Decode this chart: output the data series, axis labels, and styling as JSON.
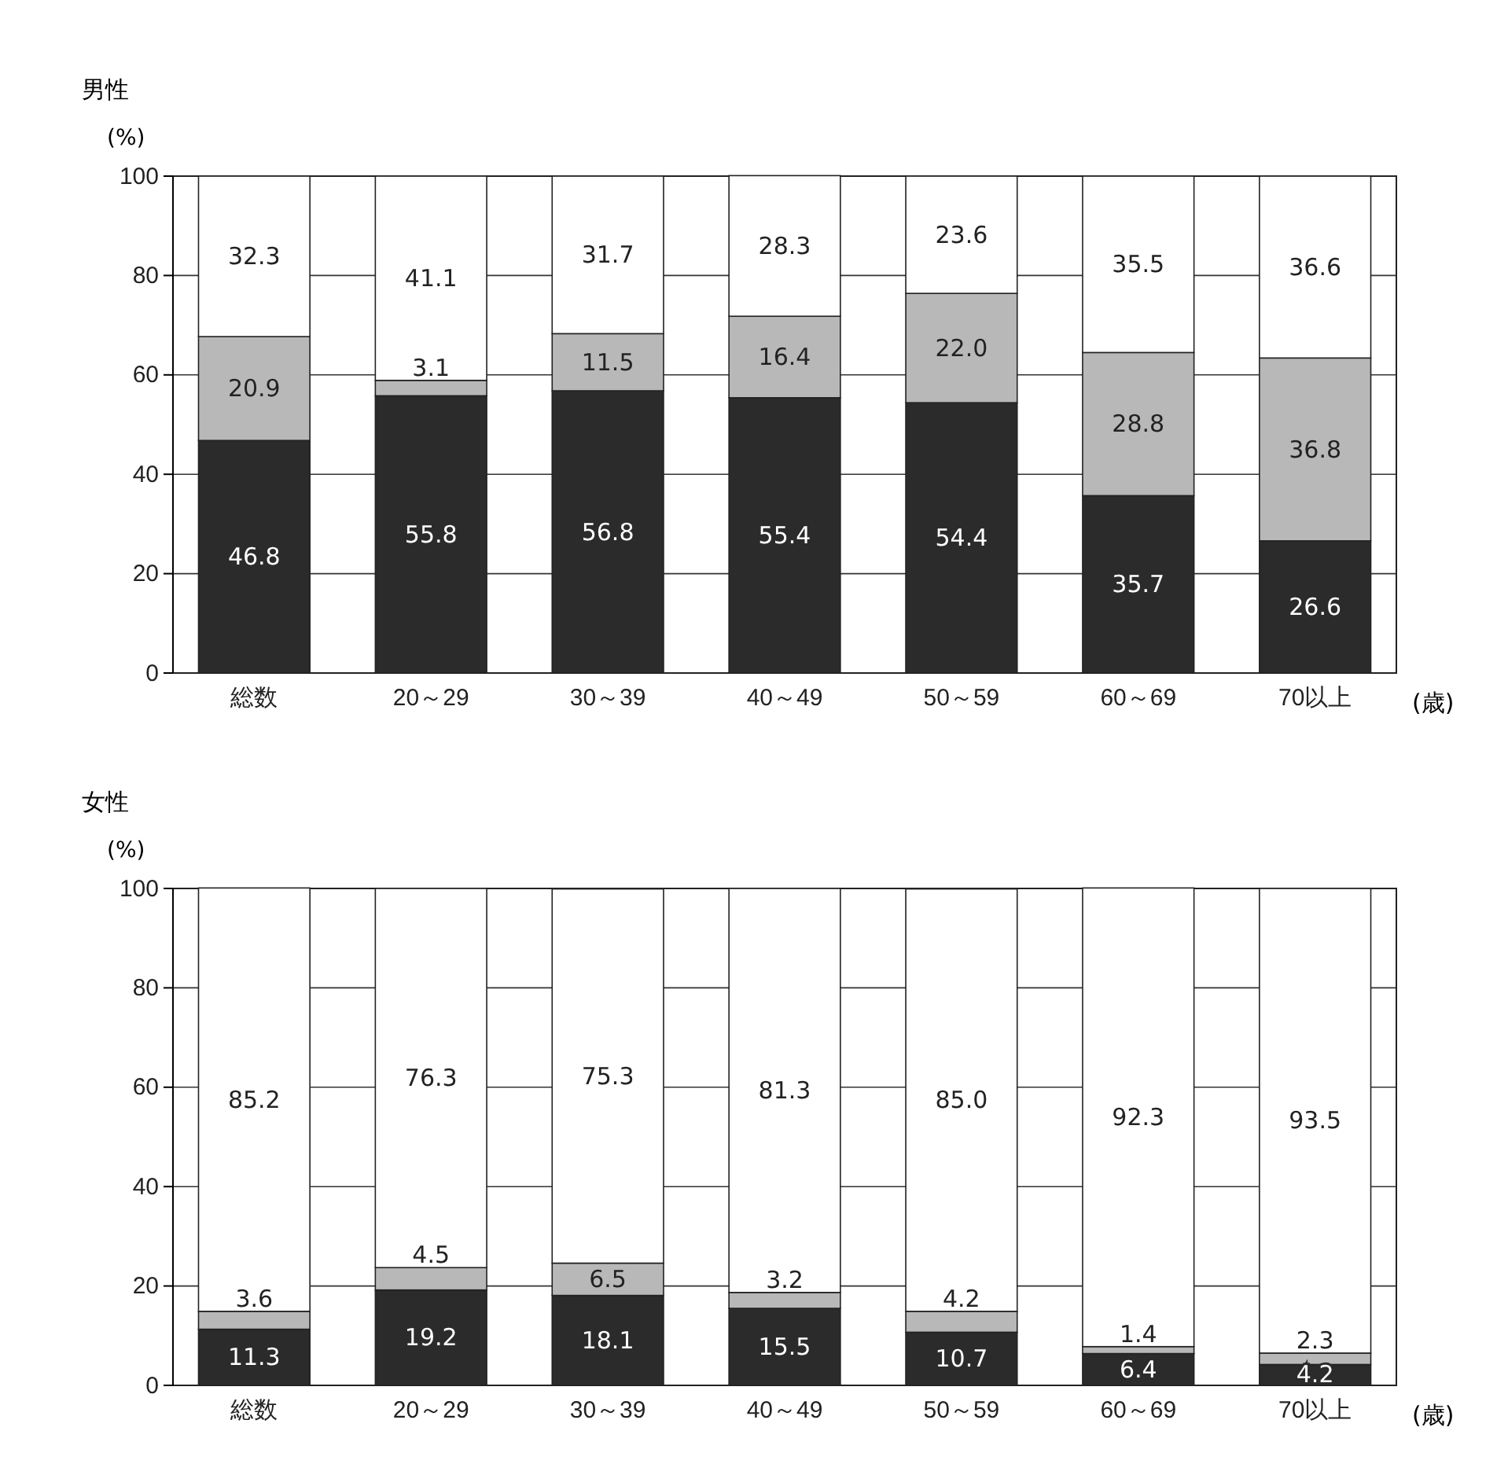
{
  "chart_data": [
    {
      "type": "bar",
      "title": "男性",
      "ylabel": "(%)",
      "xlabel": "(歳)",
      "stacked": true,
      "grid": "y",
      "ylim": [
        0,
        100
      ],
      "yticks": [
        0,
        20,
        40,
        60,
        80,
        100
      ],
      "categories": [
        "総数",
        "20～29",
        "30～39",
        "40～49",
        "50～59",
        "60～69",
        "70以上"
      ],
      "series": [
        {
          "color": "#2b2b2b",
          "values": [
            46.8,
            55.8,
            56.8,
            55.4,
            54.4,
            35.7,
            26.6
          ],
          "value_labels": [
            "46.8",
            "55.8",
            "56.8",
            "55.4",
            "54.4",
            "35.7",
            "26.6"
          ]
        },
        {
          "color": "#b8b8b8",
          "values": [
            20.9,
            3.1,
            11.5,
            16.4,
            22.0,
            28.8,
            36.8
          ],
          "value_labels": [
            "20.9",
            "3.1",
            "11.5",
            "16.4",
            "22.0",
            "28.8",
            "36.8"
          ]
        },
        {
          "color": "#ffffff",
          "values": [
            32.3,
            41.1,
            31.7,
            28.3,
            23.6,
            35.5,
            36.6
          ],
          "value_labels": [
            "32.3",
            "41.1",
            "31.7",
            "28.3",
            "23.6",
            "35.5",
            "36.6"
          ]
        }
      ]
    },
    {
      "type": "bar",
      "title": "女性",
      "ylabel": "(%)",
      "xlabel": "(歳)",
      "stacked": true,
      "grid": "y",
      "ylim": [
        0,
        100
      ],
      "yticks": [
        0,
        20,
        40,
        60,
        80,
        100
      ],
      "categories": [
        "総数",
        "20～29",
        "30～39",
        "40～49",
        "50～59",
        "60～69",
        "70以上"
      ],
      "series": [
        {
          "color": "#2b2b2b",
          "values": [
            11.3,
            19.2,
            18.1,
            15.5,
            10.7,
            6.4,
            4.2
          ],
          "value_labels": [
            "11.3",
            "19.2",
            "18.1",
            "15.5",
            "10.7",
            "6.4",
            "4.2"
          ]
        },
        {
          "color": "#b8b8b8",
          "values": [
            3.6,
            4.5,
            6.5,
            3.2,
            4.2,
            1.4,
            2.3
          ],
          "value_labels": [
            "3.6",
            "4.5",
            "6.5",
            "3.2",
            "4.2",
            "1.4",
            "2.3"
          ]
        },
        {
          "color": "#ffffff",
          "values": [
            85.2,
            76.3,
            75.3,
            81.3,
            85.0,
            92.3,
            93.5
          ],
          "value_labels": [
            "85.2",
            "76.3",
            "75.3",
            "81.3",
            "85.0",
            "92.3",
            "93.5"
          ]
        }
      ]
    }
  ]
}
